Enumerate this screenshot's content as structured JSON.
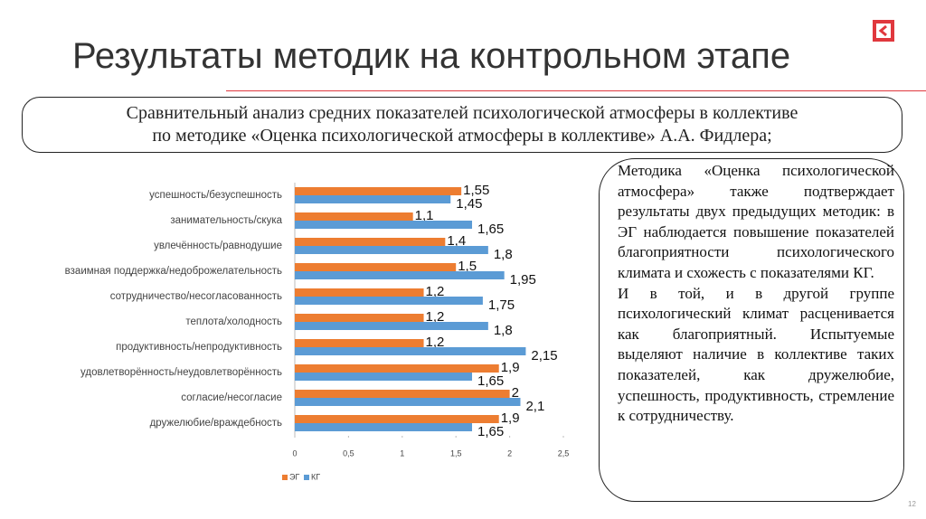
{
  "slide": {
    "title": "Результаты методик на контрольном этапе",
    "subtitle": [
      "Сравнительный анализ средних показателей психологической атмосферы в коллективе",
      "по методике «Оценка психологической атмосферы в коллективе» А.А. Фидлера;"
    ],
    "text": [
      "Методика «Оценка психологической атмосфера» также подтверждает результаты двух предыдущих методик: в ЭГ наблюдается повышение показателей благоприятности психологического климата и схожесть с показателями КГ.",
      "И в той, и в другой группе психологический климат расценивается как благоприятный. Испытуемые выделяют наличие в коллективе таких показателей, как дружелюбие, успешность, продуктивность, стремление к сотрудничеству."
    ],
    "page_number": "12"
  },
  "chart_data": {
    "type": "hbar",
    "categories": [
      "успешность/безуспешность",
      "занимательность/скука",
      "увлечённость/равнодушие",
      "взаимная поддержка/недоброжелательность",
      "сотрудничество/несогласованность",
      "теплота/холодность",
      "продуктивность/непродуктивность",
      "удовлетворённость/неудовлетворённость",
      "согласие/несогласие",
      "дружелюбие/враждебность"
    ],
    "series": [
      {
        "name": "ЭГ",
        "color": "#ed7d31",
        "values": [
          1.55,
          1.1,
          1.4,
          1.5,
          1.2,
          1.2,
          1.2,
          1.9,
          2,
          1.9
        ],
        "value_labels": [
          "1,55",
          "1,1",
          "1,4",
          "1,5",
          "1,2",
          "1,2",
          "1,2",
          "1,9",
          "2",
          "1,9"
        ]
      },
      {
        "name": "КГ",
        "color": "#5b9bd5",
        "values": [
          1.45,
          1.65,
          1.8,
          1.95,
          1.75,
          1.8,
          2.15,
          1.65,
          2.1,
          1.65
        ],
        "value_labels": [
          "1,45",
          "1,65",
          "1,8",
          "1,95",
          "1,75",
          "1,8",
          "2,15",
          "1,65",
          "2,1",
          "1,65"
        ]
      }
    ],
    "xlim": [
      0,
      2.5
    ],
    "xticks": [
      0,
      {
        "value": 0.5,
        "label": "0,5"
      },
      1,
      {
        "value": 1.5,
        "label": "1,5"
      },
      2,
      {
        "value": 2.5,
        "label": "2,5"
      }
    ]
  }
}
